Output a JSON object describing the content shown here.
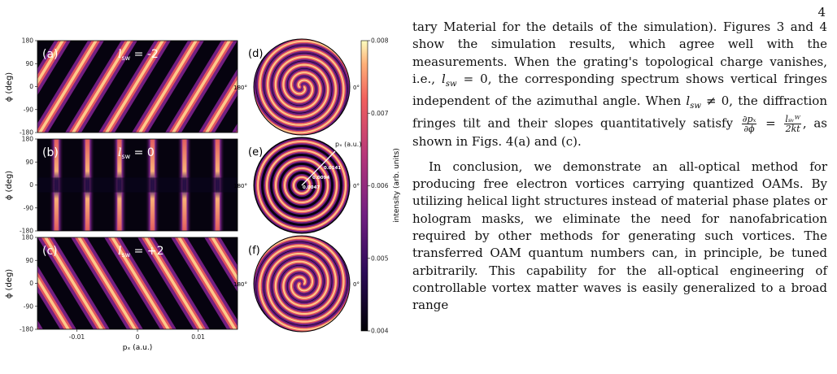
{
  "page_number": "4",
  "figure": {
    "y_axis_label": "ϕ (deg)",
    "x_axis_label": "pₓ (a.u.)",
    "y_ticks": [
      "180",
      "90",
      "0",
      "-90",
      "-180"
    ],
    "x_ticks": [
      "-0.01",
      "0",
      "0.01"
    ],
    "panels": [
      {
        "letter": "(a)",
        "label_l": "l",
        "label_sub": "sw",
        "label_val": " = -2",
        "l_sw": -2
      },
      {
        "letter": "(b)",
        "label_l": "l",
        "label_sub": "sw",
        "label_val": " = 0",
        "l_sw": 0
      },
      {
        "letter": "(c)",
        "label_l": "l",
        "label_sub": "sw",
        "label_val": " = +2",
        "l_sw": 2
      }
    ],
    "polar_panels": [
      {
        "letter": "(d)",
        "left_angle": "180°",
        "right_angle": "0°"
      },
      {
        "letter": "(e)",
        "left_angle": "180°",
        "right_angle": "0°",
        "radial_title": "pₓ (a.u.)",
        "radial_ticks": [
          "0.0141",
          "0.0094",
          "0.0047"
        ]
      },
      {
        "letter": "(f)",
        "left_angle": "180°",
        "right_angle": "0°"
      }
    ],
    "colorbar": {
      "label": "intensity (arb. units)",
      "ticks": [
        "0.008",
        "0.007",
        "0.006",
        "0.005",
        "0.004"
      ],
      "range": [
        0.004,
        0.008
      ],
      "colormap": "magma"
    },
    "colors": {
      "low": "#000004",
      "mid": "#b5367a",
      "high": "#fcfdbf"
    }
  },
  "text": {
    "p1a": "tary Material for the details of the simulation). Figures 3 and 4 show the simulation results, which agree well with the measurements. When the grating's topological charge vanishes, i.e., ",
    "l_sym": "l",
    "sw_sub": "sw",
    "eq_zero": " = 0, the corresponding spectrum shows vertical fringes independent of the azimuthal angle. When ",
    "neq_zero": " ≠ 0, the diffraction fringes tilt and their slopes quantitatively satisfy ",
    "frac1_num": "∂pₓ",
    "frac1_den": "∂ϕ",
    "eq": " = ",
    "frac2_num": "lₛᵥᵂ",
    "frac2_den": "2kt",
    "p1b": ", as shown in Figs. 4(a) and (c).",
    "p2": "In conclusion, we demonstrate an all-optical method for producing free electron vortices carrying quantized OAMs. By utilizing helical light structures instead of material phase plates or hologram masks, we eliminate the need for nanofabrication required by other methods for generating such vortices. The transferred OAM quantum numbers can, in principle, be tuned arbitrarily. This capability for the all-optical engineering of controllable vortex matter waves is easily generalized to a broad range"
  }
}
